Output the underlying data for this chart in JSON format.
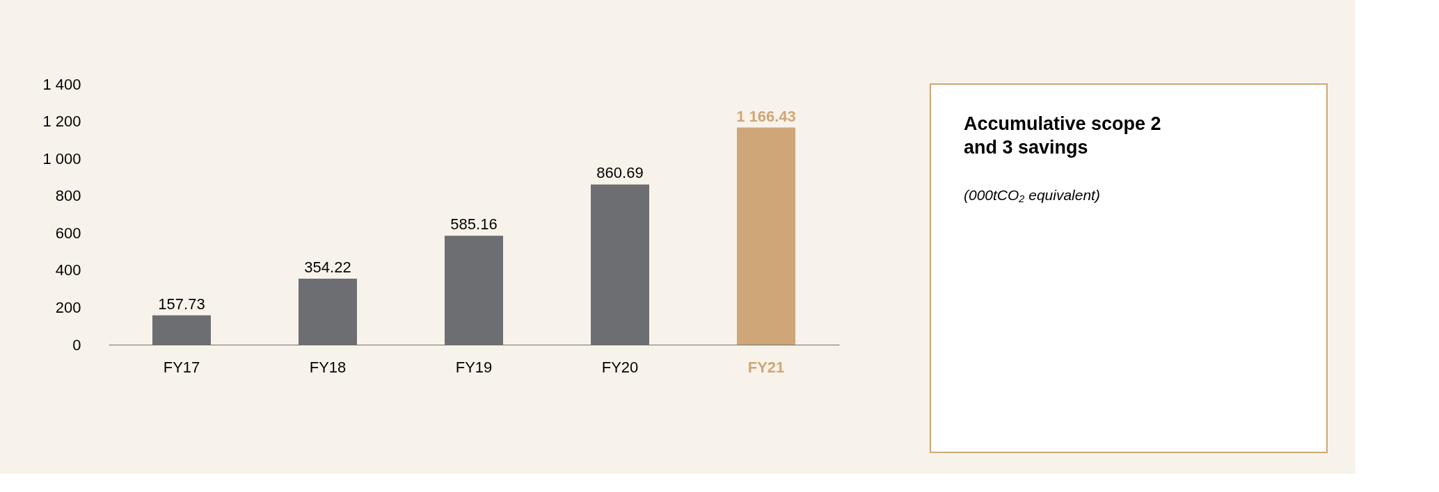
{
  "chart_data": {
    "type": "bar",
    "title": "Accumulative scope 2 and 3 savings",
    "subtitle": "(000tCO₂ equivalent)",
    "categories": [
      "FY17",
      "FY18",
      "FY19",
      "FY20",
      "FY21"
    ],
    "values": [
      157.73,
      354.22,
      585.16,
      860.69,
      1166.43
    ],
    "colors": [
      "#6d6e71",
      "#6d6e71",
      "#6d6e71",
      "#6d6e71",
      "#cfa677"
    ],
    "value_labels": [
      "157.73",
      "354.22",
      "585.16",
      "860.69",
      "1 166.43"
    ],
    "ylim": [
      0,
      1400
    ],
    "yticks": [
      {
        "value": 0,
        "label": "0"
      },
      {
        "value": 200,
        "label": "200"
      },
      {
        "value": 400,
        "label": "400"
      },
      {
        "value": 600,
        "label": "600"
      },
      {
        "value": 800,
        "label": "800"
      },
      {
        "value": 1000,
        "label": "1 000"
      },
      {
        "value": 1200,
        "label": "1 200"
      },
      {
        "value": 1400,
        "label": "1 400"
      }
    ],
    "grid": false
  }
}
